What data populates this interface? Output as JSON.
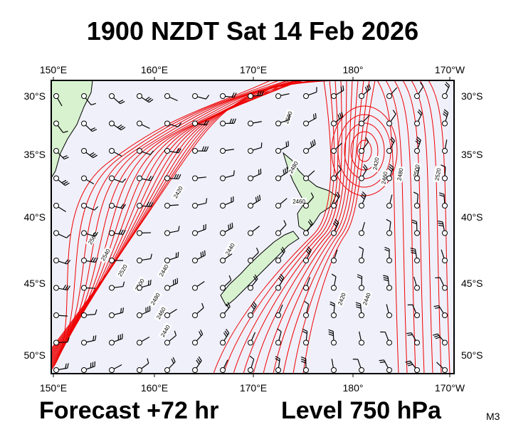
{
  "header": {
    "title": "1900 NZDT Sat 14 Feb 2026"
  },
  "map": {
    "top_labels": [
      "150°E",
      "160°E",
      "170°E",
      "180°",
      "170°W"
    ],
    "bottom_labels": [
      "150°E",
      "160°E",
      "170°E",
      "180°",
      "170°W"
    ],
    "left_labels": [
      "30°S",
      "35°S",
      "40°S",
      "45°S",
      "50°S"
    ],
    "right_labels": [
      "30°S",
      "35°S",
      "40°S",
      "45°S",
      "50°S"
    ],
    "contour_labels": [
      "2560",
      "2540",
      "2520",
      "2500",
      "2480",
      "2460",
      "2440",
      "2420",
      "2500",
      "2480",
      "2460",
      "2440",
      "2420",
      "2440",
      "2460",
      "2480",
      "2500",
      "2520",
      "2420",
      "2440"
    ]
  },
  "footer": {
    "forecast": "Forecast +72 hr",
    "level": "Level 750 hPa",
    "code": "M3"
  }
}
